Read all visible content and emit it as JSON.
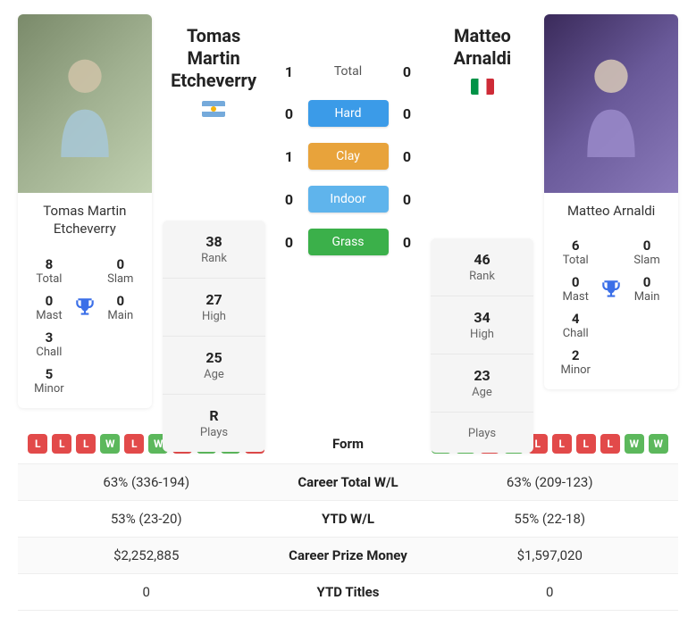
{
  "colors": {
    "hard": "#3b9be8",
    "clay": "#e8a33b",
    "indoor": "#5fb4ec",
    "grass": "#3bb04a",
    "win": "#5cb85c",
    "loss": "#e24a4a",
    "trophy": "#3b6fe8"
  },
  "left": {
    "name": "Tomas Martin Etcheverry",
    "flag_class": "ar",
    "rank": "38",
    "high": "27",
    "age": "25",
    "plays": "R",
    "titles": {
      "total": "8",
      "slam": "0",
      "mast": "0",
      "main": "0",
      "chall": "3",
      "minor": "5"
    },
    "form": [
      "L",
      "L",
      "L",
      "W",
      "L",
      "W",
      "L",
      "W",
      "W",
      "L"
    ]
  },
  "right": {
    "name": "Matteo Arnaldi",
    "flag_class": "it",
    "rank": "46",
    "high": "34",
    "age": "23",
    "plays": "",
    "titles": {
      "total": "6",
      "slam": "0",
      "mast": "0",
      "main": "0",
      "chall": "4",
      "minor": "2"
    },
    "form": [
      "W",
      "W",
      "L",
      "W",
      "L",
      "L",
      "L",
      "L",
      "W",
      "W"
    ]
  },
  "h2h": {
    "total_label": "Total",
    "total_left": "1",
    "total_right": "0",
    "hard_label": "Hard",
    "hard_left": "0",
    "hard_right": "0",
    "clay_label": "Clay",
    "clay_left": "1",
    "clay_right": "0",
    "indoor_label": "Indoor",
    "indoor_left": "0",
    "indoor_right": "0",
    "grass_label": "Grass",
    "grass_left": "0",
    "grass_right": "0"
  },
  "labels": {
    "rank": "Rank",
    "high": "High",
    "age": "Age",
    "plays": "Plays",
    "total": "Total",
    "slam": "Slam",
    "mast": "Mast",
    "main": "Main",
    "chall": "Chall",
    "minor": "Minor",
    "form": "Form",
    "career_wl": "Career Total W/L",
    "ytd_wl": "YTD W/L",
    "prize": "Career Prize Money",
    "ytd_titles": "YTD Titles"
  },
  "table": {
    "career_wl_left": "63% (336-194)",
    "career_wl_right": "63% (209-123)",
    "ytd_wl_left": "53% (23-20)",
    "ytd_wl_right": "55% (22-18)",
    "prize_left": "$2,252,885",
    "prize_right": "$1,597,020",
    "ytd_titles_left": "0",
    "ytd_titles_right": "0"
  }
}
